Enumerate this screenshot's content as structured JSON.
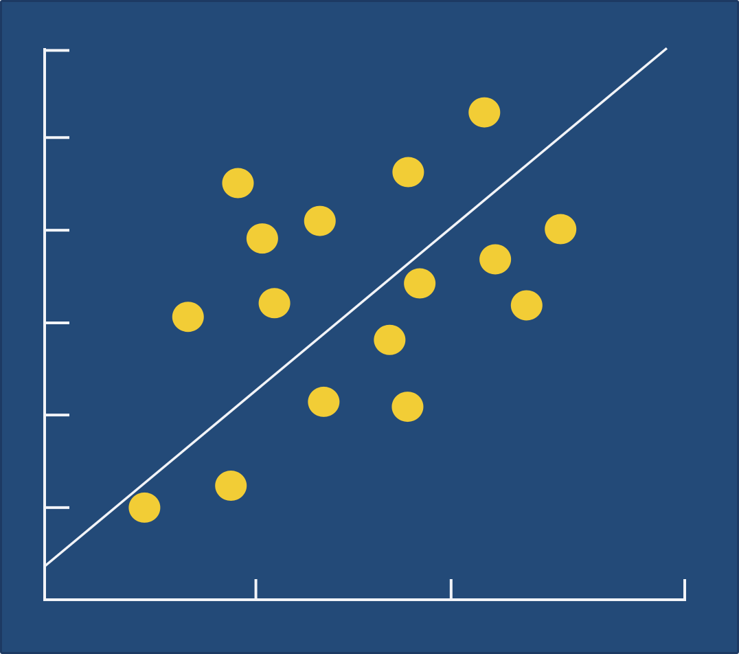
{
  "chart_data": {
    "type": "scatter",
    "title": "",
    "xlabel": "",
    "ylabel": "",
    "xlim": [
      0,
      100
    ],
    "ylim": [
      0,
      100
    ],
    "x_ticks": [
      33,
      63.5,
      100
    ],
    "y_ticks": [
      16.8,
      33.7,
      50.5,
      67.4,
      84.3,
      100.2
    ],
    "tick_labels_shown": false,
    "grid": false,
    "legend": "none",
    "points": [
      {
        "x": 15.6,
        "y": 16.8
      },
      {
        "x": 29.1,
        "y": 20.8
      },
      {
        "x": 22.4,
        "y": 51.6
      },
      {
        "x": 30.2,
        "y": 76.0
      },
      {
        "x": 34.0,
        "y": 65.9
      },
      {
        "x": 35.9,
        "y": 54.1
      },
      {
        "x": 43.0,
        "y": 69.1
      },
      {
        "x": 43.6,
        "y": 36.1
      },
      {
        "x": 53.9,
        "y": 47.4
      },
      {
        "x": 56.7,
        "y": 35.2
      },
      {
        "x": 56.8,
        "y": 78.0
      },
      {
        "x": 58.6,
        "y": 57.7
      },
      {
        "x": 68.7,
        "y": 88.9
      },
      {
        "x": 70.4,
        "y": 62.1
      },
      {
        "x": 75.3,
        "y": 53.7
      },
      {
        "x": 80.6,
        "y": 67.6
      }
    ],
    "trendline": {
      "x": [
        0,
        97.2
      ],
      "y": [
        6.1,
        100.6
      ]
    },
    "colors": {
      "background": "#234a78",
      "axes": "#f2f4f8",
      "points": "#f2cd36",
      "trendline": "#f2f4f8"
    }
  }
}
